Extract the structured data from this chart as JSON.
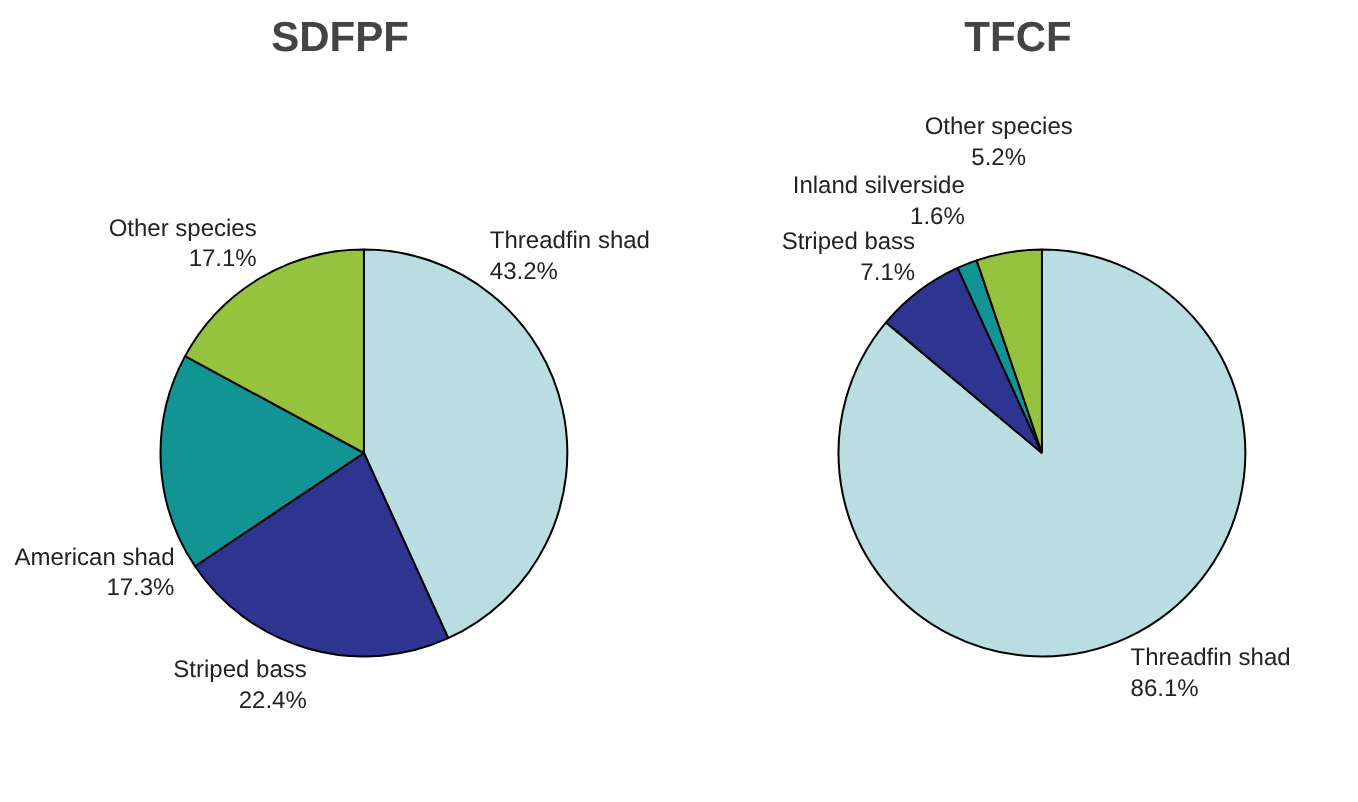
{
  "chart_data": [
    {
      "type": "pie",
      "title": "SDFPF",
      "categories": [
        "Threadfin shad",
        "Striped bass",
        "American shad",
        "Other species"
      ],
      "values": [
        43.2,
        22.4,
        17.3,
        17.1
      ],
      "colors": [
        "#b9dde0",
        "#2e3590",
        "#129494",
        "#96c33e"
      ],
      "value_labels": [
        "43.2%",
        "22.4%",
        "17.3%",
        "17.1%"
      ]
    },
    {
      "type": "pie",
      "title": "TFCF",
      "categories": [
        "Threadfin shad",
        "Striped bass",
        "Inland silverside",
        "Other species"
      ],
      "values": [
        86.1,
        7.1,
        1.6,
        5.2
      ],
      "colors": [
        "#b9dde0",
        "#2e3590",
        "#129494",
        "#96c33e"
      ],
      "value_labels": [
        "86.1%",
        "7.1%",
        "1.6%",
        "5.2%"
      ]
    }
  ]
}
